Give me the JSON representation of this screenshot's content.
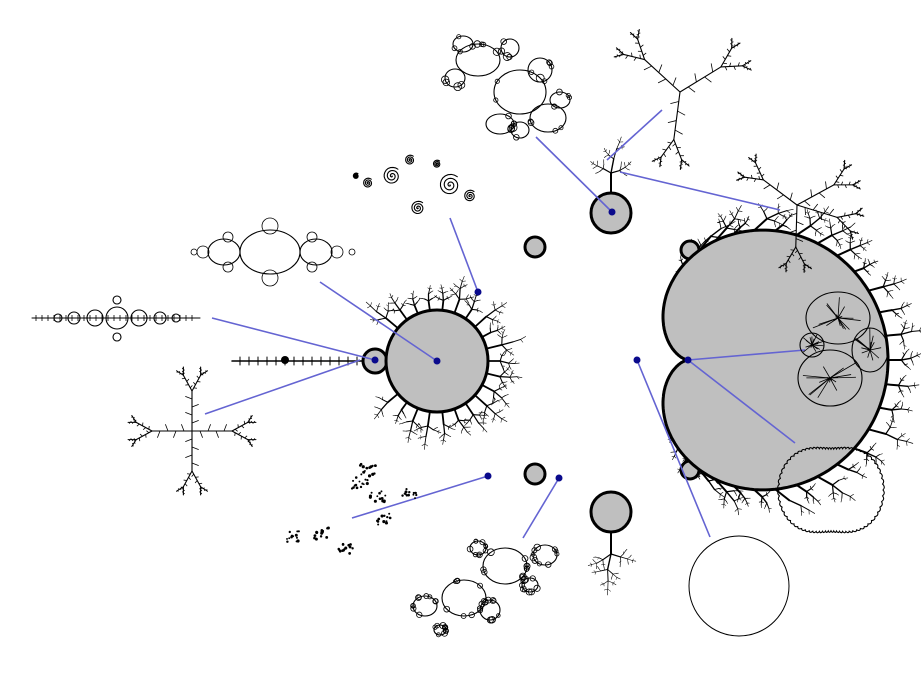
{
  "colors": {
    "background": "#ffffff",
    "set_fill": "#bfbfbf",
    "set_outline": "#000000",
    "connector": "#6464d2",
    "sample_point": "#0a0a8c"
  },
  "julia_insets": [
    {
      "name": "julia-douady-rabbit"
    },
    {
      "name": "julia-dendrite-top"
    },
    {
      "name": "julia-dendrite-right"
    },
    {
      "name": "julia-seahorse-spirals"
    },
    {
      "name": "julia-period-two-basilica"
    },
    {
      "name": "julia-period-four"
    },
    {
      "name": "julia-tip-dendrite"
    },
    {
      "name": "julia-cantor-dust"
    },
    {
      "name": "julia-siegel-lobes"
    },
    {
      "name": "julia-circle"
    },
    {
      "name": "julia-cauliflower"
    },
    {
      "name": "julia-elephant-valley"
    }
  ]
}
